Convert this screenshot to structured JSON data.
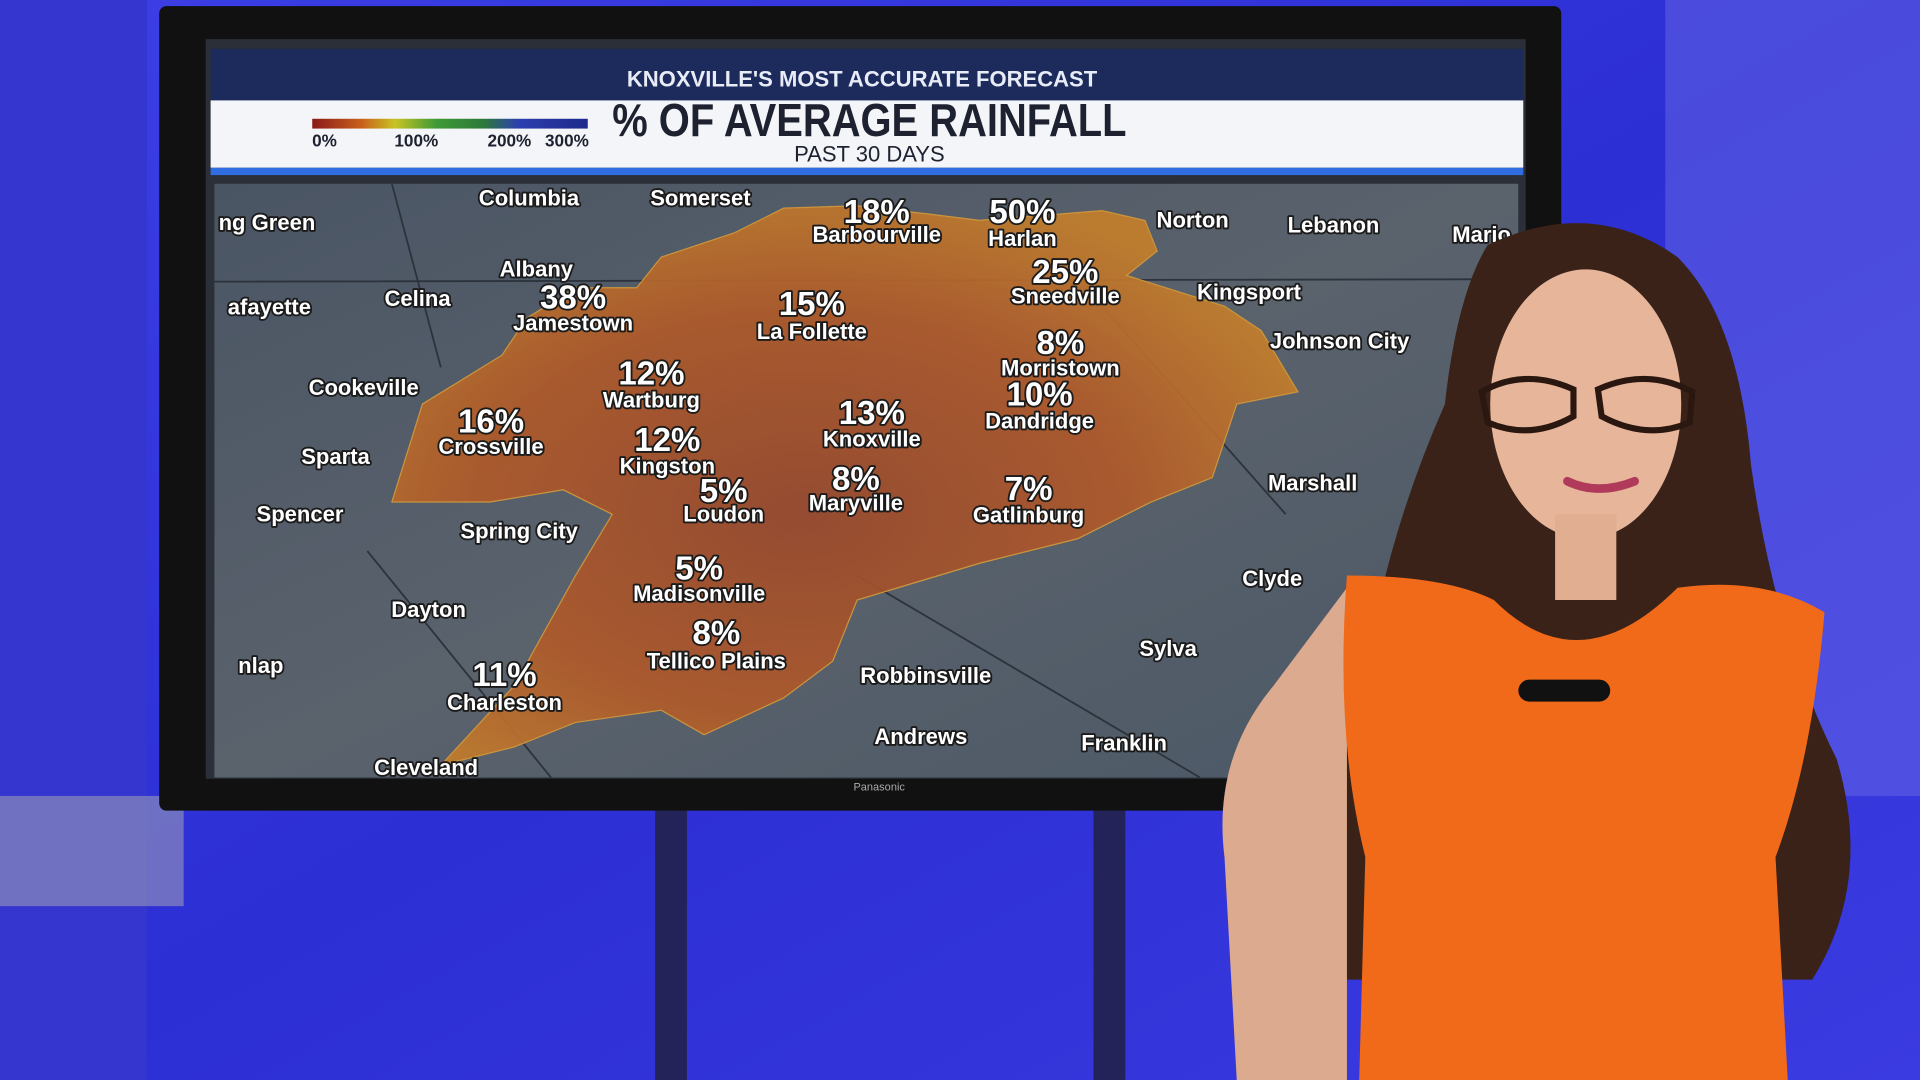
{
  "header": {
    "banner": "KNOXVILLE'S MOST ACCURATE FORECAST",
    "title": "% OF AVERAGE RAINFALL",
    "subtitle": "PAST 30 DAYS"
  },
  "legend": {
    "labels": [
      "0%",
      "100%",
      "200%",
      "300%"
    ]
  },
  "cities": [
    {
      "name": "Barbourville",
      "value": "18%"
    },
    {
      "name": "Harlan",
      "value": "50%"
    },
    {
      "name": "Sneedville",
      "value": "25%"
    },
    {
      "name": "Jamestown",
      "value": "38%"
    },
    {
      "name": "La Follette",
      "value": "15%"
    },
    {
      "name": "Morristown",
      "value": "8%"
    },
    {
      "name": "Wartburg",
      "value": "12%"
    },
    {
      "name": "Dandridge",
      "value": "10%"
    },
    {
      "name": "Crossville",
      "value": "16%"
    },
    {
      "name": "Knoxville",
      "value": "13%"
    },
    {
      "name": "Kingston",
      "value": "12%"
    },
    {
      "name": "Maryville",
      "value": "8%"
    },
    {
      "name": "Loudon",
      "value": "5%"
    },
    {
      "name": "Gatlinburg",
      "value": "7%"
    },
    {
      "name": "Madisonville",
      "value": "5%"
    },
    {
      "name": "Tellico Plains",
      "value": "8%"
    },
    {
      "name": "Charleston",
      "value": "11%"
    }
  ],
  "places": [
    "ng Green",
    "Columbia",
    "Somerset",
    "Norton",
    "Lebanon",
    "Mario",
    "Albany",
    "afayette",
    "Celina",
    "Kingsport",
    "Johnson City",
    "Cookeville",
    "Sparta",
    "Spencer",
    "Spring City",
    "Marshall",
    "Clyde",
    "Dayton",
    "Sylva",
    "nlap",
    "Robbinsville",
    "Andrews",
    "Franklin",
    "Cleveland"
  ],
  "brand": "Panasonic"
}
